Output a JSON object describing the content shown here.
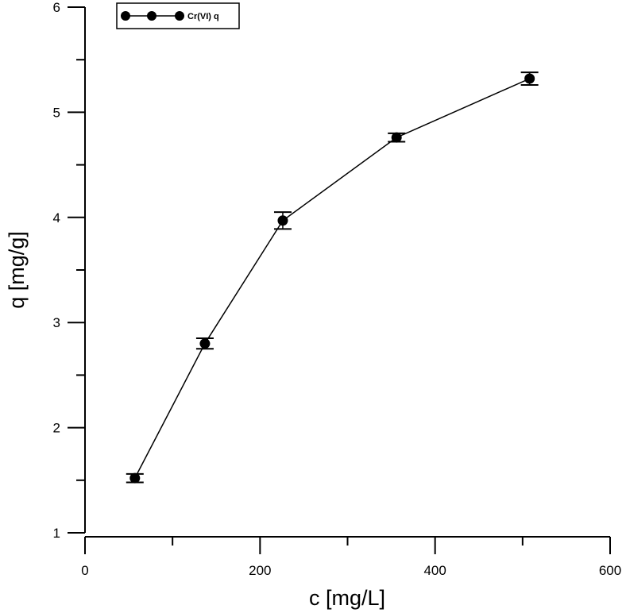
{
  "chart_data": {
    "type": "line",
    "title": "",
    "xlabel": "c [mg/L]",
    "ylabel": "q [mg/g]",
    "xlim": [
      0,
      600
    ],
    "ylim": [
      1,
      6
    ],
    "x_ticks": [
      0,
      200,
      400,
      600
    ],
    "x_minor_ticks": [
      100,
      300,
      500
    ],
    "y_ticks": [
      1,
      2,
      3,
      4,
      5,
      6
    ],
    "y_minor_ticks": [
      1.5,
      2.5,
      3.5,
      4.5,
      5.5
    ],
    "grid": false,
    "legend_position": "top-left",
    "series": [
      {
        "name": "Cr(VI) q",
        "marker": "circle",
        "color": "#000000",
        "x": [
          57,
          137,
          226,
          356,
          508
        ],
        "values": [
          1.52,
          2.8,
          3.97,
          4.76,
          5.32
        ],
        "errors": [
          0.04,
          0.05,
          0.08,
          0.04,
          0.06
        ]
      }
    ]
  },
  "legend": {
    "label": "Cr(VI) q"
  },
  "axes": {
    "x_title": "c [mg/L]",
    "y_title": "q [mg/g]",
    "x_tick_labels": [
      "0",
      "200",
      "400",
      "600"
    ],
    "y_tick_labels": [
      "1",
      "2",
      "3",
      "4",
      "5",
      "6"
    ]
  }
}
